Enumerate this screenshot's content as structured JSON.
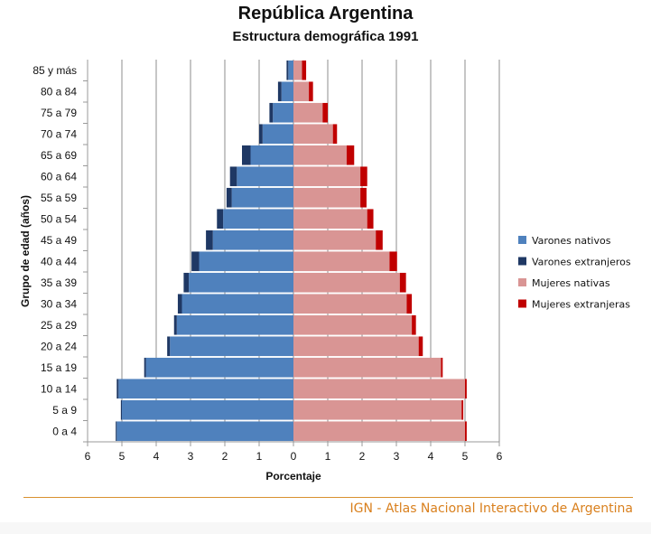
{
  "chart_data": {
    "type": "bar",
    "orientation": "horizontal-population-pyramid",
    "title": "República Argentina",
    "subtitle": "Estructura demográfica 1991",
    "xlabel": "Porcentaje",
    "ylabel": "Grupo de edad (años)",
    "xlim": [
      -6,
      6
    ],
    "xticks": [
      -6,
      -5,
      -4,
      -3,
      -2,
      -1,
      0,
      1,
      2,
      3,
      4,
      5,
      6
    ],
    "xtick_labels": [
      "6",
      "5",
      "4",
      "3",
      "2",
      "1",
      "0",
      "1",
      "2",
      "3",
      "4",
      "5",
      "6"
    ],
    "grid": "vertical",
    "legend_position": "right",
    "categories": [
      "0 a 4",
      "5 a 9",
      "10 a 14",
      "15 a 19",
      "20 a 24",
      "25 a 29",
      "30 a 34",
      "35 a 39",
      "40 a 44",
      "45 a 49",
      "50 a 54",
      "55 a 59",
      "60 a 64",
      "65 a 69",
      "70 a 74",
      "75 a 79",
      "80 a 84",
      "85 y más"
    ],
    "series": [
      {
        "name": "Varones nativos",
        "color": "#4f81bd",
        "side": "left",
        "values": [
          5.15,
          5.0,
          5.1,
          4.3,
          3.6,
          3.4,
          3.25,
          3.05,
          2.75,
          2.35,
          2.05,
          1.8,
          1.65,
          1.25,
          0.9,
          0.6,
          0.35,
          0.15
        ]
      },
      {
        "name": "Varones extranjeros",
        "color": "#1f3864",
        "side": "left",
        "values": [
          0.03,
          0.03,
          0.05,
          0.05,
          0.08,
          0.08,
          0.12,
          0.15,
          0.22,
          0.2,
          0.18,
          0.15,
          0.2,
          0.25,
          0.1,
          0.1,
          0.1,
          0.05
        ]
      },
      {
        "name": "Mujeres nativas",
        "color": "#d99594",
        "side": "right",
        "values": [
          5.0,
          4.9,
          5.0,
          4.3,
          3.65,
          3.45,
          3.3,
          3.1,
          2.8,
          2.4,
          2.15,
          1.95,
          1.95,
          1.55,
          1.15,
          0.85,
          0.45,
          0.25
        ]
      },
      {
        "name": "Mujeres extranjeras",
        "color": "#c00000",
        "side": "right",
        "values": [
          0.05,
          0.05,
          0.05,
          0.05,
          0.12,
          0.12,
          0.15,
          0.18,
          0.22,
          0.2,
          0.18,
          0.18,
          0.2,
          0.22,
          0.12,
          0.15,
          0.12,
          0.12
        ]
      }
    ]
  },
  "footer": {
    "source": "IGN - Atlas Nacional Interactivo de Argentina"
  }
}
